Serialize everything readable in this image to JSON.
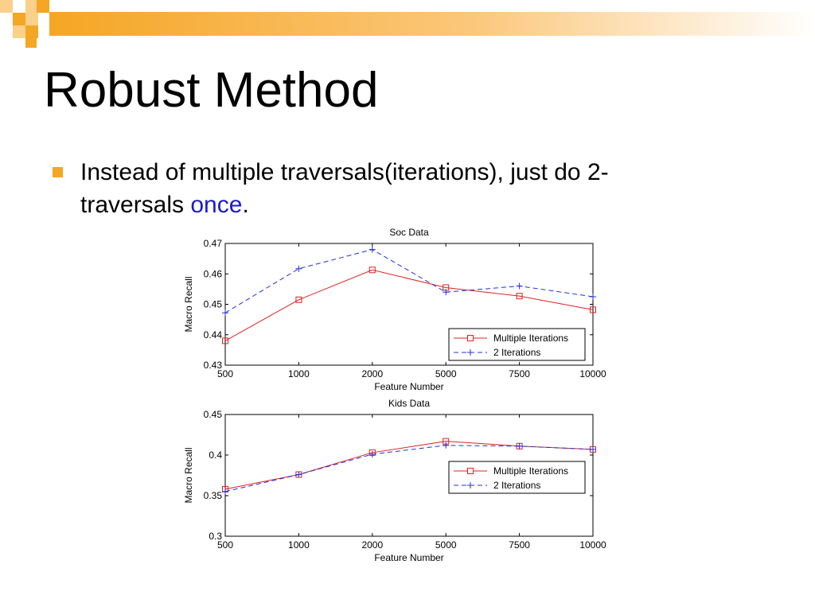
{
  "slide": {
    "title": "Robust Method",
    "bullet": {
      "text_before": "Instead of multiple traversals(iterations), just do 2-traversals ",
      "highlight": "once",
      "text_after": ".",
      "highlight_color": "#1a1acc"
    },
    "colors": {
      "accent": "#f5a623",
      "accent_light": "#fbd08a",
      "multiple_iterations": "#e02020",
      "two_iterations": "#2030e0"
    }
  },
  "chart_data": [
    {
      "type": "line",
      "title": "Soc Data",
      "xlabel": "Feature Number",
      "ylabel": "Macro Recall",
      "categories": [
        "500",
        "1000",
        "2000",
        "5000",
        "7500",
        "10000"
      ],
      "ylim": [
        0.43,
        0.47
      ],
      "yticks": [
        "0.43",
        "0.44",
        "0.45",
        "0.46",
        "0.47"
      ],
      "yticks_values": [
        0.43,
        0.44,
        0.45,
        0.46,
        0.47
      ],
      "legend_placement": "lower-right",
      "series": [
        {
          "name": "Multiple Iterations",
          "values": [
            0.438,
            0.4515,
            0.4613,
            0.4555,
            0.4527,
            0.4482
          ],
          "color": "#e02020",
          "marker": "square",
          "style": "solid"
        },
        {
          "name": "2 Iterations",
          "values": [
            0.4472,
            0.4617,
            0.468,
            0.454,
            0.456,
            0.4525
          ],
          "color": "#2030e0",
          "marker": "plus",
          "style": "dashed"
        }
      ]
    },
    {
      "type": "line",
      "title": "Kids Data",
      "xlabel": "Feature Number",
      "ylabel": "Macro Recall",
      "categories": [
        "500",
        "1000",
        "2000",
        "5000",
        "7500",
        "10000"
      ],
      "ylim": [
        0.3,
        0.45
      ],
      "yticks": [
        "0.3",
        "0.35",
        "0.4",
        "0.45"
      ],
      "yticks_values": [
        0.3,
        0.35,
        0.4,
        0.45
      ],
      "legend_placement": "middle-right",
      "series": [
        {
          "name": "Multiple Iterations",
          "values": [
            0.358,
            0.376,
            0.403,
            0.417,
            0.411,
            0.407
          ],
          "color": "#e02020",
          "marker": "square",
          "style": "solid"
        },
        {
          "name": "2 Iterations",
          "values": [
            0.355,
            0.376,
            0.401,
            0.412,
            0.411,
            0.407
          ],
          "color": "#2030e0",
          "marker": "plus",
          "style": "dashed"
        }
      ]
    }
  ]
}
